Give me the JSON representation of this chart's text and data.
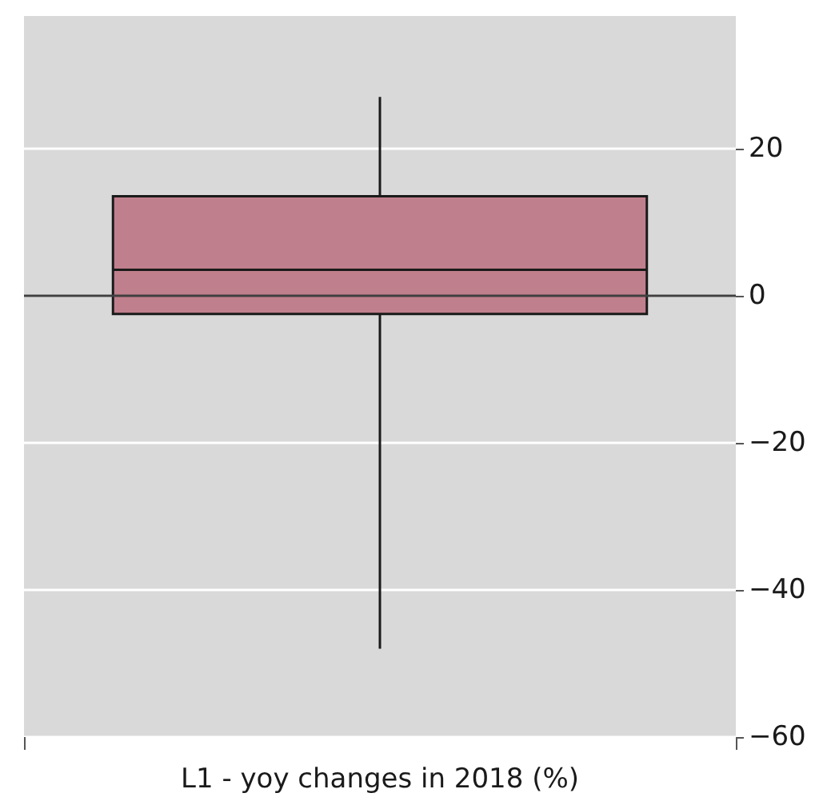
{
  "chart_data": {
    "type": "box",
    "xlabel": "L1 - yoy changes in 2018 (%)",
    "categories": [
      null
    ],
    "series": [
      {
        "color": "#c07f8c",
        "boxes": [
          {
            "low": -48,
            "q1": -2.5,
            "median": 3.5,
            "q3": 13.5,
            "high": 27
          }
        ]
      }
    ],
    "ylim": [
      -60,
      38
    ],
    "yticks": [
      {
        "value": -60,
        "label": "−60"
      },
      {
        "value": -40,
        "label": "−40"
      },
      {
        "value": -20,
        "label": "−20"
      },
      0,
      20
    ],
    "ref_lines": [
      {
        "axis": "y",
        "value": 0,
        "color": "#404040"
      }
    ],
    "grid": "y"
  }
}
